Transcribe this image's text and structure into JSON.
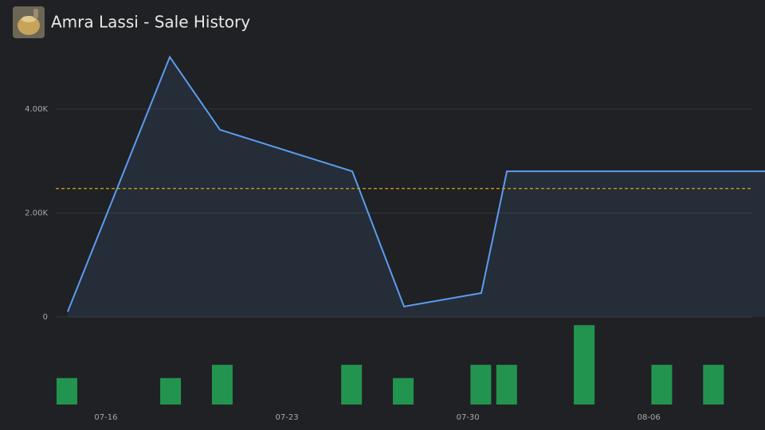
{
  "chart_data": {
    "type": "line",
    "title": "Amra Lassi - Sale History",
    "x": [
      14.52,
      18.47,
      20.41,
      25.53,
      27.53,
      30.52,
      31.51,
      41.5
    ],
    "series": [
      {
        "color": "#5b9cf0",
        "values": [
          100,
          5000,
          3600,
          2800,
          200,
          460,
          2800,
          2800
        ]
      }
    ],
    "average": 2470,
    "average_color": "#d9a21b",
    "xlim": [
      14.06,
      41.0
    ],
    "xticks": [
      {
        "value": 16,
        "label": "07-16"
      },
      {
        "value": 23,
        "label": "07-23"
      },
      {
        "value": 30,
        "label": "07-30"
      },
      {
        "value": 37,
        "label": "08-06"
      }
    ],
    "ylim": [
      0,
      5330
    ],
    "yticks": [
      0,
      {
        "value": 2000,
        "label": "2.00K"
      },
      {
        "value": 4000,
        "label": "4.00K"
      }
    ],
    "grid": true,
    "volume": {
      "color": "#23944f",
      "x": [
        14.49,
        18.5,
        20.5,
        25.5,
        27.5,
        30.5,
        31.5,
        34.5,
        37.5,
        39.5
      ],
      "values": [
        2,
        2,
        3,
        3,
        2,
        3,
        3,
        6,
        3,
        3
      ],
      "ylim": [
        0,
        6.5
      ]
    }
  }
}
